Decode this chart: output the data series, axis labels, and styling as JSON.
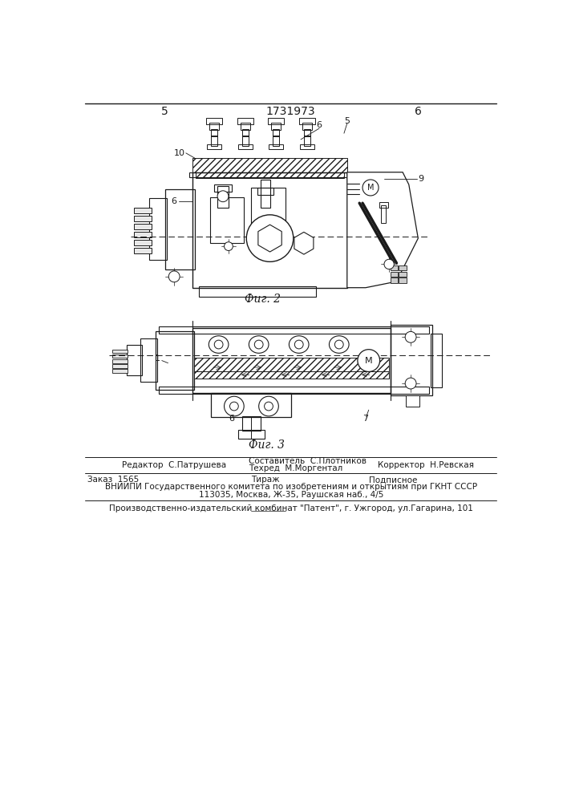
{
  "page_number_left": "5",
  "page_number_right": "6",
  "patent_number": "1731973",
  "fig2_caption": "Фиг. 2",
  "fig3_caption": "Фиг. 3",
  "footer_line1_left": "Редактор  С.Патрушева",
  "footer_line1_center1": "Составитель  С.Плотников",
  "footer_line1_center2": "Техред  М.Моргентал",
  "footer_line1_right": "Корректор  Н.Ревская",
  "footer_line2_left": "Заказ  1565",
  "footer_line2_center": "Тираж",
  "footer_line2_right": "Подписное",
  "footer_line3": "ВНИИПИ Государственного комитета по изобретениям и открытиям при ГКНТ СССР",
  "footer_line4": "113035, Москва, Ж-35, Раушская наб., 4/5",
  "footer_line5": "Производственно-издательский комбинат \"Патент\", г. Ужгород, ул.Гагарина, 101",
  "bg_color": "#ffffff",
  "line_color": "#1a1a1a",
  "text_color": "#1a1a1a"
}
